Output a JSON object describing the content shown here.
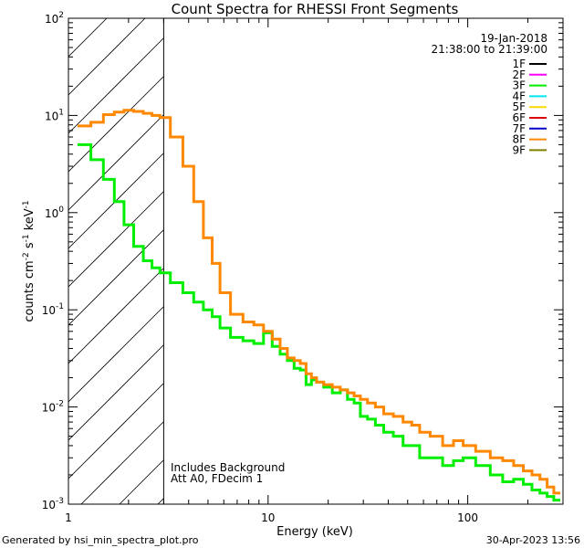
{
  "chart_data": {
    "type": "line",
    "title": "Count Spectra for RHESSI Front Segments",
    "xlabel": "Energy (keV)",
    "ylabel": {
      "base": "counts cm",
      "e1": "-2",
      "mid1": " s",
      "e2": "-1",
      "mid2": " keV",
      "e3": "-1"
    },
    "xscale": "log",
    "yscale": "log",
    "xlim": [
      1,
      300
    ],
    "ylim": [
      0.001,
      100
    ],
    "x_ticks": [
      {
        "value": 1,
        "label": "1"
      },
      {
        "value": 10,
        "label": "10"
      },
      {
        "value": 100,
        "label": "100"
      }
    ],
    "y_ticks": [
      {
        "value": 0.001,
        "base": "10",
        "exp": "-3"
      },
      {
        "value": 0.01,
        "base": "10",
        "exp": "-2"
      },
      {
        "value": 0.1,
        "base": "10",
        "exp": "-1"
      },
      {
        "value": 1,
        "base": "10",
        "exp": "0"
      },
      {
        "value": 10,
        "base": "10",
        "exp": "1"
      },
      {
        "value": 100,
        "base": "10",
        "exp": "2"
      }
    ],
    "date": "19-Jan-2018",
    "time_range": "21:38:00 to 21:39:00",
    "shaded_region_upper_keV": 3,
    "annotations": [
      "Includes Background",
      "Att A0, FDecim 1"
    ],
    "legend": [
      {
        "label": "1F",
        "color": "#000000"
      },
      {
        "label": "2F",
        "color": "#ff00ff"
      },
      {
        "label": "3F",
        "color": "#00ee00"
      },
      {
        "label": "4F",
        "color": "#00e5ee"
      },
      {
        "label": "5F",
        "color": "#ffd700"
      },
      {
        "label": "6F",
        "color": "#dd0000"
      },
      {
        "label": "7F",
        "color": "#0000cc"
      },
      {
        "label": "8F",
        "color": "#ff8800"
      },
      {
        "label": "9F",
        "color": "#808000"
      }
    ],
    "series": [
      {
        "name": "3F",
        "color": "#00ee00",
        "energy_keV": [
          1.2,
          1.4,
          1.6,
          1.8,
          2.0,
          2.25,
          2.5,
          2.75,
          3.0,
          3.5,
          4.0,
          4.5,
          5.0,
          5.5,
          6.0,
          7.0,
          8.0,
          9.0,
          10.0,
          11.0,
          12.0,
          13.0,
          14.0,
          15.0,
          16.0,
          17.0,
          18.0,
          20.0,
          22.0,
          24.0,
          26.0,
          28.0,
          30.0,
          33.0,
          36.0,
          40.0,
          45.0,
          50.0,
          55.0,
          60.0,
          70.0,
          80.0,
          90.0,
          100.0,
          120.0,
          140.0,
          160.0,
          180.0,
          200.0,
          220.0,
          240.0,
          260.0,
          280.0
        ],
        "counts": [
          5.0,
          3.5,
          2.2,
          1.3,
          0.75,
          0.45,
          0.32,
          0.27,
          0.24,
          0.19,
          0.15,
          0.12,
          0.1,
          0.085,
          0.065,
          0.052,
          0.048,
          0.045,
          0.058,
          0.042,
          0.035,
          0.03,
          0.025,
          0.024,
          0.017,
          0.019,
          0.018,
          0.016,
          0.014,
          0.015,
          0.012,
          0.011,
          0.008,
          0.0075,
          0.0065,
          0.0055,
          0.005,
          0.004,
          0.004,
          0.003,
          0.003,
          0.0025,
          0.0028,
          0.003,
          0.0025,
          0.002,
          0.0017,
          0.0018,
          0.0016,
          0.0014,
          0.0013,
          0.0012,
          0.0011
        ]
      },
      {
        "name": "8F",
        "color": "#ff8800",
        "energy_keV": [
          1.2,
          1.4,
          1.6,
          1.8,
          2.0,
          2.25,
          2.5,
          2.75,
          3.0,
          3.5,
          4.0,
          4.5,
          5.0,
          5.5,
          6.0,
          7.0,
          8.0,
          9.0,
          10.0,
          11.0,
          12.0,
          13.0,
          14.0,
          15.0,
          16.0,
          17.0,
          18.0,
          20.0,
          22.0,
          24.0,
          26.0,
          28.0,
          30.0,
          33.0,
          36.0,
          40.0,
          45.0,
          50.0,
          55.0,
          60.0,
          70.0,
          80.0,
          90.0,
          100.0,
          120.0,
          140.0,
          160.0,
          180.0,
          200.0,
          220.0,
          240.0,
          260.0,
          280.0
        ],
        "counts": [
          7.8,
          8.5,
          10.2,
          10.8,
          11.3,
          11.0,
          10.5,
          10.0,
          9.5,
          6.0,
          3.0,
          1.3,
          0.55,
          0.3,
          0.15,
          0.09,
          0.075,
          0.07,
          0.06,
          0.05,
          0.04,
          0.032,
          0.03,
          0.028,
          0.022,
          0.02,
          0.018,
          0.017,
          0.016,
          0.015,
          0.014,
          0.013,
          0.012,
          0.011,
          0.01,
          0.0085,
          0.008,
          0.007,
          0.0065,
          0.0055,
          0.005,
          0.004,
          0.0045,
          0.004,
          0.0035,
          0.003,
          0.0028,
          0.0025,
          0.0022,
          0.002,
          0.0018,
          0.0015,
          0.0013
        ]
      }
    ]
  },
  "footer": {
    "generated_by": "Generated by hsi_min_spectra_plot.pro",
    "timestamp": "30-Apr-2023 13:56"
  }
}
